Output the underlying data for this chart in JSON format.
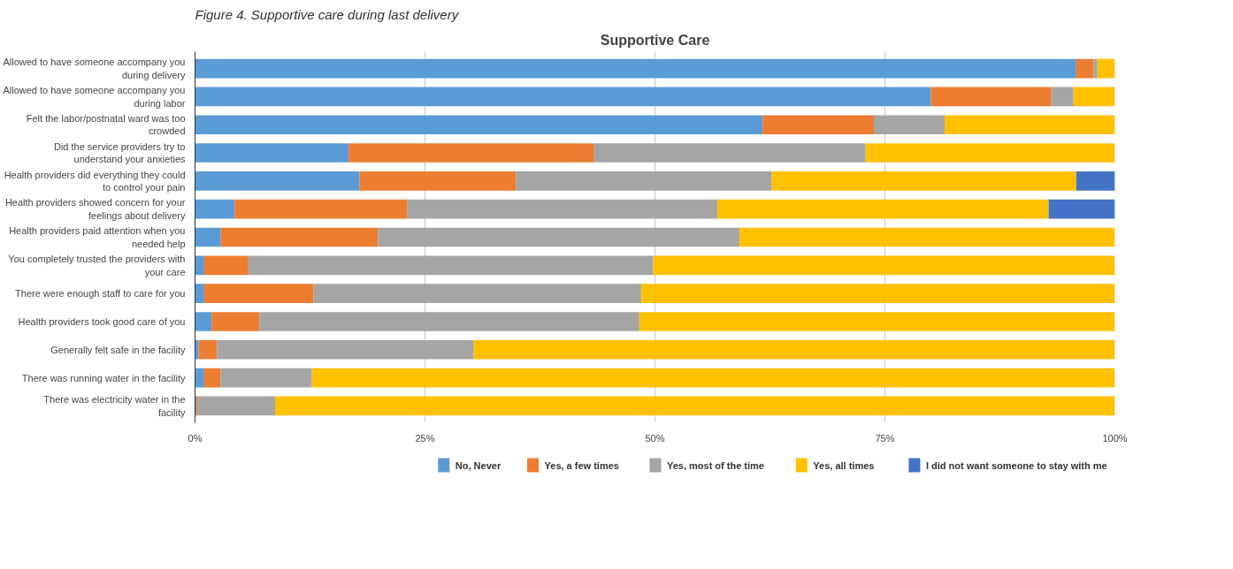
{
  "chart_data": {
    "type": "bar",
    "orientation": "horizontal",
    "stacked": true,
    "title": "Supportive Care",
    "annotations": [
      "Figure 4. Supportive care during last delivery"
    ],
    "categories": [
      "Allowed to have someone accompany you during delivery",
      "Allowed to have someone accompany you during labor",
      "Felt the labor/postnatal ward was too crowded",
      "Did the service providers try to understand your anxieties",
      "Health providers did everything they could to control your pain",
      "Health providers showed concern for your feelings about delivery",
      "Health providers paid attention when you needed help",
      "You completely trusted the providers with your care",
      "There were enough staff to care for you",
      "Health providers took good care of you",
      "Generally felt safe in the facility",
      "There was running water in the facility",
      "There was electricity water in the facility"
    ],
    "series": [
      {
        "name": "No, Never",
        "color": "#5b9bd5",
        "values": [
          95.8,
          80.0,
          61.7,
          16.7,
          17.9,
          4.3,
          2.8,
          1.0,
          1.0,
          1.8,
          0.4,
          1.0,
          0.2
        ]
      },
      {
        "name": "Yes, a few times",
        "color": "#ed7d31",
        "values": [
          1.9,
          13.1,
          12.1,
          26.7,
          17.0,
          18.8,
          17.1,
          4.8,
          11.9,
          5.2,
          2.0,
          1.8,
          0.2
        ]
      },
      {
        "name": "Yes, most of the time",
        "color": "#a5a5a5",
        "values": [
          0.4,
          2.4,
          7.7,
          29.5,
          27.8,
          33.7,
          39.3,
          44.0,
          35.6,
          41.3,
          27.9,
          9.9,
          8.3
        ]
      },
      {
        "name": "Yes, all times",
        "color": "#ffc000",
        "values": [
          1.9,
          4.5,
          18.5,
          27.1,
          33.1,
          36.0,
          40.8,
          50.2,
          51.5,
          51.7,
          69.7,
          87.3,
          91.3
        ]
      },
      {
        "name": "I did not want someone to stay with me",
        "color": "#4472c4",
        "values": [
          0,
          0,
          0,
          0,
          4.2,
          7.2,
          0,
          0,
          0,
          0,
          0,
          0,
          0
        ]
      }
    ],
    "xlim": [
      0,
      100
    ],
    "xticks": [
      {
        "value": 0,
        "label": "0%"
      },
      {
        "value": 25,
        "label": "25%"
      },
      {
        "value": 50,
        "label": "50%"
      },
      {
        "value": 75,
        "label": "75%"
      },
      {
        "value": 100,
        "label": "100%"
      }
    ],
    "grid": "x",
    "legend": "bottom"
  }
}
